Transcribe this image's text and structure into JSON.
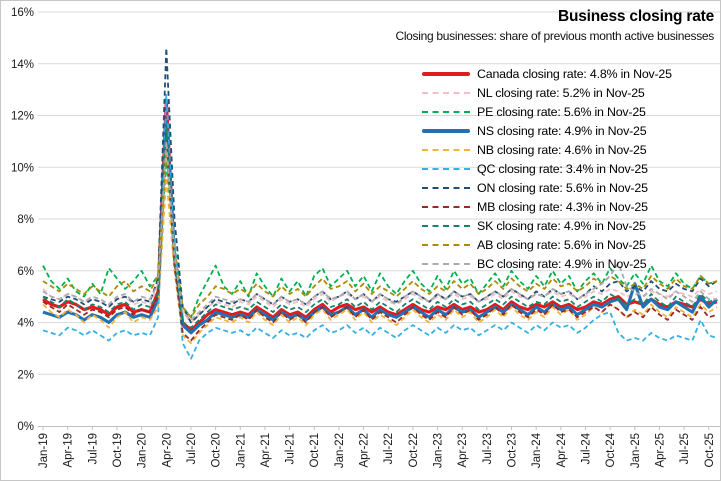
{
  "chart": {
    "title": "Business closing rate",
    "subtitle": "Closing businesses: share of previous month active businesses"
  },
  "chart_data": {
    "type": "line",
    "title": "Business closing rate",
    "subtitle": "Closing businesses: share of previous month active businesses",
    "ylabel": "",
    "xlabel": "",
    "ylim": [
      0,
      16
    ],
    "y_tick_step": 2,
    "y_tick_suffix": "%",
    "grid": true,
    "legend_position": "top-right-inside",
    "x_tick_every": 3,
    "x": [
      "Jan-19",
      "Feb-19",
      "Mar-19",
      "Apr-19",
      "May-19",
      "Jun-19",
      "Jul-19",
      "Aug-19",
      "Sep-19",
      "Oct-19",
      "Nov-19",
      "Dec-19",
      "Jan-20",
      "Feb-20",
      "Mar-20",
      "Apr-20",
      "May-20",
      "Jun-20",
      "Jul-20",
      "Aug-20",
      "Sep-20",
      "Oct-20",
      "Nov-20",
      "Dec-20",
      "Jan-21",
      "Feb-21",
      "Mar-21",
      "Apr-21",
      "May-21",
      "Jun-21",
      "Jul-21",
      "Aug-21",
      "Sep-21",
      "Oct-21",
      "Nov-21",
      "Dec-21",
      "Jan-22",
      "Feb-22",
      "Mar-22",
      "Apr-22",
      "May-22",
      "Jun-22",
      "Jul-22",
      "Aug-22",
      "Sep-22",
      "Oct-22",
      "Nov-22",
      "Dec-22",
      "Jan-23",
      "Feb-23",
      "Mar-23",
      "Apr-23",
      "May-23",
      "Jun-23",
      "Jul-23",
      "Aug-23",
      "Sep-23",
      "Oct-23",
      "Nov-23",
      "Dec-23",
      "Jan-24",
      "Feb-24",
      "Mar-24",
      "Apr-24",
      "May-24",
      "Jun-24",
      "Jul-24",
      "Aug-24",
      "Sep-24",
      "Oct-24",
      "Nov-24",
      "Dec-24",
      "Jan-25",
      "Feb-25",
      "Mar-25",
      "Apr-25",
      "May-25",
      "Jun-25",
      "Jul-25",
      "Aug-25",
      "Sep-25",
      "Oct-25",
      "Nov-25"
    ],
    "series": [
      {
        "name": "Canada",
        "label": "Canada closing rate: 4.8% in Nov-25",
        "color": "#e31a1c",
        "line": "solid",
        "thick": true,
        "values": [
          4.9,
          4.7,
          4.6,
          4.8,
          4.7,
          4.5,
          4.6,
          4.5,
          4.3,
          4.6,
          4.7,
          4.4,
          4.5,
          4.4,
          5.2,
          12.6,
          6.5,
          4.0,
          3.7,
          4.0,
          4.3,
          4.5,
          4.4,
          4.3,
          4.4,
          4.3,
          4.6,
          4.4,
          4.2,
          4.5,
          4.3,
          4.4,
          4.2,
          4.5,
          4.7,
          4.4,
          4.6,
          4.7,
          4.5,
          4.6,
          4.4,
          4.6,
          4.4,
          4.3,
          4.5,
          4.7,
          4.5,
          4.4,
          4.6,
          4.5,
          4.7,
          4.5,
          4.6,
          4.4,
          4.5,
          4.7,
          4.5,
          4.8,
          4.6,
          4.5,
          4.7,
          4.6,
          4.8,
          4.6,
          4.7,
          4.5,
          4.6,
          4.8,
          4.7,
          4.9,
          5.0,
          4.7,
          4.8,
          4.7,
          4.9,
          4.7,
          4.6,
          4.8,
          4.7,
          4.6,
          4.9,
          4.7,
          4.8
        ]
      },
      {
        "name": "NL",
        "label": "NL closing rate: 5.2% in Nov-25",
        "color": "#f2c0c4",
        "line": "dashed",
        "thick": false,
        "values": [
          5.3,
          5.0,
          4.9,
          5.1,
          5.0,
          4.8,
          4.9,
          4.8,
          4.6,
          4.9,
          5.0,
          4.7,
          4.8,
          4.7,
          5.5,
          11.2,
          6.8,
          4.4,
          4.0,
          4.3,
          4.6,
          4.8,
          4.7,
          4.6,
          4.8,
          4.7,
          5.0,
          4.8,
          4.6,
          4.9,
          4.7,
          4.8,
          4.6,
          4.9,
          5.1,
          4.8,
          5.0,
          5.1,
          4.9,
          5.0,
          4.8,
          5.0,
          4.8,
          4.7,
          4.9,
          5.1,
          4.9,
          4.8,
          5.0,
          4.9,
          5.1,
          4.9,
          5.0,
          4.8,
          4.9,
          5.1,
          4.9,
          5.2,
          5.0,
          4.9,
          5.1,
          5.0,
          5.2,
          5.0,
          5.1,
          4.9,
          5.0,
          5.2,
          5.1,
          5.3,
          5.2,
          5.0,
          5.1,
          5.0,
          5.2,
          5.1,
          5.0,
          5.2,
          5.1,
          5.0,
          5.3,
          5.1,
          5.2
        ]
      },
      {
        "name": "PE",
        "label": "PE closing rate: 5.6% in Nov-25",
        "color": "#00b050",
        "line": "dashed",
        "thick": false,
        "values": [
          6.2,
          5.6,
          5.3,
          5.7,
          5.2,
          5.0,
          5.5,
          5.1,
          6.1,
          5.7,
          5.3,
          5.6,
          6.0,
          5.4,
          5.8,
          10.2,
          7.0,
          4.6,
          4.2,
          5.0,
          5.6,
          6.2,
          5.4,
          5.1,
          5.6,
          5.0,
          5.9,
          5.4,
          5.0,
          5.7,
          5.2,
          5.6,
          5.0,
          5.8,
          6.1,
          5.4,
          5.7,
          6.0,
          5.4,
          5.8,
          5.2,
          5.9,
          5.4,
          5.1,
          5.6,
          6.0,
          5.5,
          5.2,
          5.8,
          5.3,
          6.0,
          5.5,
          5.7,
          5.1,
          5.5,
          5.9,
          5.4,
          6.0,
          5.6,
          5.3,
          5.8,
          5.4,
          6.0,
          5.5,
          5.8,
          5.2,
          5.6,
          5.9,
          5.5,
          6.1,
          5.7,
          5.4,
          5.9,
          5.5,
          6.2,
          5.6,
          5.4,
          5.9,
          5.5,
          5.3,
          5.8,
          5.5,
          5.6
        ]
      },
      {
        "name": "NS",
        "label": "NS closing rate: 4.9% in Nov-25",
        "color": "#2172b4",
        "line": "solid",
        "thick": true,
        "values": [
          4.4,
          4.3,
          4.2,
          4.4,
          4.3,
          4.1,
          4.3,
          4.2,
          4.0,
          4.3,
          4.4,
          4.2,
          4.3,
          4.2,
          4.9,
          11.8,
          6.6,
          3.9,
          3.6,
          3.9,
          4.1,
          4.4,
          4.3,
          4.2,
          4.3,
          4.2,
          4.5,
          4.3,
          4.1,
          4.4,
          4.2,
          4.3,
          4.1,
          4.4,
          4.6,
          4.3,
          4.4,
          4.6,
          4.3,
          4.5,
          4.2,
          4.5,
          4.3,
          4.2,
          4.4,
          4.6,
          4.4,
          4.2,
          4.5,
          4.3,
          4.6,
          4.4,
          4.5,
          4.2,
          4.4,
          4.6,
          4.4,
          4.7,
          4.5,
          4.3,
          4.6,
          4.4,
          4.7,
          4.5,
          4.6,
          4.3,
          4.5,
          4.7,
          4.6,
          4.8,
          4.9,
          4.5,
          5.5,
          4.6,
          4.9,
          4.6,
          4.5,
          4.8,
          4.6,
          4.4,
          5.0,
          4.6,
          4.9
        ]
      },
      {
        "name": "NB",
        "label": "NB closing rate: 4.6% in Nov-25",
        "color": "#f0b43c",
        "line": "dashed",
        "thick": false,
        "values": [
          4.7,
          4.4,
          4.2,
          4.5,
          4.3,
          4.0,
          4.3,
          4.1,
          3.8,
          4.2,
          4.4,
          4.0,
          4.2,
          4.1,
          4.6,
          9.6,
          6.0,
          3.5,
          3.2,
          3.6,
          3.9,
          4.2,
          4.1,
          4.0,
          4.2,
          4.0,
          4.4,
          4.1,
          3.9,
          4.3,
          4.0,
          4.2,
          3.9,
          4.3,
          4.5,
          4.1,
          4.3,
          4.5,
          4.1,
          4.4,
          4.0,
          4.3,
          4.1,
          3.9,
          4.2,
          4.5,
          4.2,
          4.0,
          4.3,
          4.1,
          4.5,
          4.2,
          4.4,
          4.0,
          4.2,
          4.5,
          4.2,
          4.6,
          4.3,
          4.1,
          4.4,
          4.2,
          4.6,
          4.3,
          4.5,
          4.1,
          4.3,
          4.6,
          4.4,
          4.7,
          4.5,
          4.2,
          4.5,
          4.3,
          4.7,
          4.4,
          4.2,
          4.6,
          4.4,
          4.2,
          4.7,
          4.4,
          4.6
        ]
      },
      {
        "name": "QC",
        "label": "QC closing rate: 3.4% in Nov-25",
        "color": "#33b1e3",
        "line": "dashed",
        "thick": false,
        "values": [
          3.7,
          3.6,
          3.5,
          3.8,
          3.7,
          3.5,
          3.7,
          3.5,
          3.3,
          3.6,
          3.7,
          3.5,
          3.6,
          3.5,
          4.2,
          12.8,
          7.0,
          3.2,
          2.6,
          3.3,
          3.6,
          3.8,
          3.7,
          3.6,
          3.7,
          3.5,
          3.8,
          3.6,
          3.4,
          3.7,
          3.5,
          3.6,
          3.4,
          3.7,
          3.9,
          3.6,
          3.7,
          3.9,
          3.6,
          3.8,
          3.5,
          3.8,
          3.6,
          3.4,
          3.7,
          3.9,
          3.7,
          3.5,
          3.8,
          3.6,
          3.9,
          3.7,
          3.8,
          3.5,
          3.7,
          3.9,
          3.7,
          4.0,
          3.8,
          3.6,
          3.9,
          3.7,
          4.0,
          3.8,
          3.9,
          3.6,
          3.8,
          4.1,
          4.3,
          4.4,
          3.6,
          3.3,
          3.4,
          3.3,
          3.6,
          3.4,
          3.3,
          3.5,
          3.4,
          3.3,
          4.1,
          3.5,
          3.4
        ]
      },
      {
        "name": "ON",
        "label": "ON closing rate: 5.6% in Nov-25",
        "color": "#1f4e79",
        "line": "dashed",
        "thick": false,
        "values": [
          5.0,
          4.9,
          4.8,
          5.0,
          4.9,
          4.7,
          4.9,
          4.8,
          4.6,
          4.9,
          5.0,
          4.8,
          4.9,
          4.8,
          5.7,
          14.6,
          8.0,
          4.6,
          4.0,
          4.3,
          4.6,
          4.9,
          4.8,
          4.7,
          4.9,
          4.8,
          5.1,
          4.9,
          4.7,
          5.0,
          4.8,
          4.9,
          4.7,
          5.0,
          5.2,
          4.9,
          5.0,
          5.2,
          4.9,
          5.1,
          4.8,
          5.1,
          4.9,
          4.8,
          5.0,
          5.2,
          5.0,
          4.8,
          5.1,
          4.9,
          5.2,
          5.0,
          5.1,
          4.8,
          5.0,
          5.2,
          5.0,
          5.3,
          5.1,
          4.9,
          5.2,
          5.0,
          5.3,
          5.1,
          5.2,
          4.9,
          5.1,
          5.4,
          5.2,
          5.5,
          5.6,
          5.2,
          5.4,
          5.2,
          5.6,
          5.3,
          5.2,
          5.5,
          5.3,
          5.2,
          5.7,
          5.4,
          5.6
        ]
      },
      {
        "name": "MB",
        "label": "MB closing rate: 4.3% in Nov-25",
        "color": "#9b2824",
        "line": "dashed",
        "thick": false,
        "values": [
          4.8,
          4.6,
          4.4,
          4.7,
          4.5,
          4.3,
          4.5,
          4.4,
          4.2,
          4.5,
          4.6,
          4.3,
          4.5,
          4.4,
          5.0,
          11.4,
          6.2,
          3.6,
          3.3,
          3.7,
          4.0,
          4.3,
          4.2,
          4.1,
          4.3,
          4.1,
          4.5,
          4.2,
          4.0,
          4.4,
          4.1,
          4.3,
          4.0,
          4.4,
          4.6,
          4.2,
          4.4,
          4.6,
          4.2,
          4.5,
          4.1,
          4.4,
          4.2,
          4.0,
          4.3,
          4.6,
          4.3,
          4.1,
          4.4,
          4.2,
          4.6,
          4.3,
          4.5,
          4.1,
          4.3,
          4.6,
          4.3,
          4.7,
          4.4,
          4.2,
          4.5,
          4.3,
          4.7,
          4.4,
          4.5,
          4.2,
          4.4,
          4.6,
          4.4,
          4.7,
          4.5,
          4.2,
          4.4,
          4.2,
          4.6,
          4.3,
          4.1,
          4.5,
          4.3,
          4.1,
          4.6,
          4.2,
          4.3
        ]
      },
      {
        "name": "SK",
        "label": "SK closing rate: 4.9% in Nov-25",
        "color": "#17836c",
        "line": "dashed",
        "thick": false,
        "values": [
          5.0,
          4.8,
          4.6,
          4.9,
          4.7,
          4.5,
          4.7,
          4.6,
          4.4,
          4.7,
          4.8,
          4.5,
          4.7,
          4.6,
          5.1,
          11.6,
          6.4,
          4.0,
          3.8,
          4.1,
          4.4,
          4.7,
          4.6,
          4.5,
          4.6,
          4.5,
          4.8,
          4.6,
          4.4,
          4.7,
          4.5,
          4.6,
          4.4,
          4.7,
          4.9,
          4.6,
          4.7,
          4.9,
          4.6,
          4.8,
          4.5,
          4.8,
          4.6,
          4.4,
          4.7,
          4.9,
          4.7,
          4.5,
          4.8,
          4.6,
          4.9,
          4.7,
          4.8,
          4.5,
          4.7,
          4.9,
          4.7,
          5.0,
          4.8,
          4.6,
          4.8,
          4.7,
          5.0,
          4.8,
          4.9,
          4.6,
          4.8,
          5.0,
          4.8,
          5.1,
          4.9,
          4.7,
          4.9,
          4.7,
          5.1,
          4.8,
          4.6,
          5.0,
          4.8,
          4.6,
          5.1,
          4.8,
          4.9
        ]
      },
      {
        "name": "AB",
        "label": "AB closing rate: 5.6% in Nov-25",
        "color": "#ab8b00",
        "line": "dashed",
        "thick": false,
        "values": [
          5.6,
          5.4,
          5.2,
          5.5,
          5.3,
          5.1,
          5.4,
          5.2,
          5.0,
          5.4,
          5.6,
          5.2,
          5.4,
          5.2,
          5.8,
          10.6,
          6.8,
          4.6,
          4.2,
          4.7,
          5.0,
          5.4,
          5.3,
          5.1,
          5.3,
          5.1,
          5.5,
          5.2,
          5.0,
          5.4,
          5.1,
          5.3,
          5.0,
          5.4,
          5.7,
          5.3,
          5.4,
          5.6,
          5.2,
          5.5,
          5.1,
          5.4,
          5.2,
          5.0,
          5.3,
          5.6,
          5.3,
          5.1,
          5.4,
          5.2,
          5.6,
          5.3,
          5.5,
          5.1,
          5.3,
          5.6,
          5.3,
          5.7,
          5.4,
          5.2,
          5.5,
          5.3,
          5.7,
          5.4,
          5.5,
          5.2,
          5.4,
          5.7,
          5.5,
          5.8,
          5.6,
          5.3,
          5.5,
          5.3,
          5.8,
          5.5,
          5.3,
          5.7,
          5.4,
          5.3,
          5.8,
          5.5,
          5.6
        ]
      },
      {
        "name": "BC",
        "label": "BC closing rate: 4.9% in Nov-25",
        "color": "#ababab",
        "line": "dashed",
        "thick": false,
        "values": [
          5.2,
          5.0,
          4.9,
          5.1,
          5.0,
          4.8,
          5.0,
          4.9,
          4.7,
          5.0,
          5.1,
          4.8,
          5.0,
          4.9,
          5.5,
          11.0,
          6.6,
          4.4,
          4.1,
          4.4,
          4.7,
          5.0,
          4.9,
          4.8,
          4.9,
          4.8,
          5.1,
          4.9,
          4.7,
          5.0,
          4.8,
          4.9,
          4.7,
          5.0,
          5.2,
          4.9,
          5.0,
          5.2,
          4.9,
          5.1,
          4.8,
          5.1,
          4.9,
          4.7,
          5.0,
          5.2,
          5.0,
          4.8,
          5.1,
          4.9,
          5.2,
          5.0,
          5.1,
          4.8,
          5.0,
          5.2,
          5.0,
          5.3,
          5.1,
          4.9,
          5.1,
          5.0,
          5.3,
          5.1,
          5.2,
          4.9,
          5.1,
          5.3,
          5.5,
          5.8,
          6.3,
          5.4,
          5.2,
          5.0,
          5.3,
          5.1,
          4.9,
          5.2,
          5.0,
          4.8,
          5.2,
          4.9,
          4.9
        ]
      }
    ],
    "colors": {
      "gridline": "#d9d9d9",
      "axis": "#bfbfbf",
      "axis_text": "#1a1a1a"
    }
  }
}
